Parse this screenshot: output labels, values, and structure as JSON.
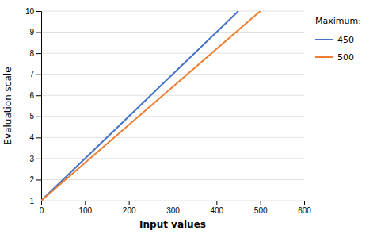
{
  "chart_data": {
    "type": "line",
    "xlabel": "Input values",
    "ylabel": "Evaluation scale",
    "legend_title": "Maximum:",
    "xlim": [
      0,
      600
    ],
    "ylim": [
      1,
      10
    ],
    "xticks": [
      0,
      100,
      200,
      300,
      400,
      500,
      600
    ],
    "yticks": [
      1,
      2,
      3,
      4,
      5,
      6,
      7,
      8,
      9,
      10
    ],
    "grid": "y",
    "legend": "right",
    "series": [
      {
        "name": "450",
        "color": "#4472c4",
        "x": [
          0,
          450
        ],
        "values": [
          1,
          10
        ]
      },
      {
        "name": "500",
        "color": "#ed7d31",
        "x": [
          0,
          500
        ],
        "values": [
          1,
          10
        ]
      }
    ]
  }
}
